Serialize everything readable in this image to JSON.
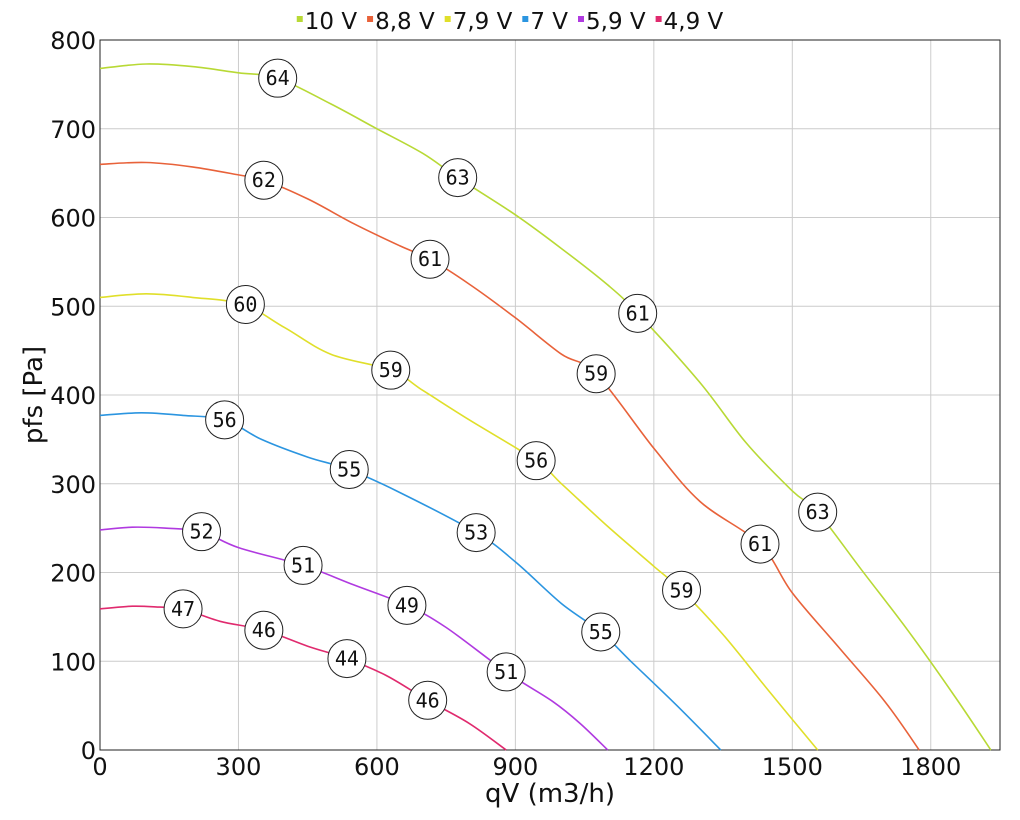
{
  "chart_data": {
    "type": "line",
    "xlabel": "qV (m3/h)",
    "ylabel": "pfs [Pa]",
    "xlim": [
      0,
      1950
    ],
    "ylim": [
      0,
      800
    ],
    "xticks": [
      0,
      300,
      600,
      900,
      1200,
      1500,
      1800
    ],
    "yticks": [
      0,
      100,
      200,
      300,
      400,
      500,
      600,
      700,
      800
    ],
    "grid": true,
    "legend_position": "top",
    "series": [
      {
        "name": "10 V",
        "color": "#b8d935",
        "points": [
          [
            0,
            768
          ],
          [
            100,
            773
          ],
          [
            200,
            770
          ],
          [
            300,
            763
          ],
          [
            385,
            757
          ],
          [
            500,
            728
          ],
          [
            600,
            700
          ],
          [
            700,
            672
          ],
          [
            775,
            645
          ],
          [
            900,
            603
          ],
          [
            1000,
            565
          ],
          [
            1100,
            524
          ],
          [
            1165,
            492
          ],
          [
            1300,
            414
          ],
          [
            1400,
            346
          ],
          [
            1500,
            292
          ],
          [
            1555,
            268
          ],
          [
            1650,
            203
          ],
          [
            1750,
            135
          ],
          [
            1850,
            62
          ],
          [
            1930,
            0
          ]
        ],
        "labels": [
          {
            "x": 385,
            "y": 757,
            "text": "64"
          },
          {
            "x": 775,
            "y": 645,
            "text": "63"
          },
          {
            "x": 1165,
            "y": 492,
            "text": "61"
          },
          {
            "x": 1555,
            "y": 268,
            "text": "63"
          }
        ]
      },
      {
        "name": "8,8 V",
        "color": "#e8623a",
        "points": [
          [
            0,
            660
          ],
          [
            100,
            662
          ],
          [
            200,
            657
          ],
          [
            300,
            648
          ],
          [
            355,
            642
          ],
          [
            450,
            621
          ],
          [
            550,
            593
          ],
          [
            650,
            568
          ],
          [
            715,
            553
          ],
          [
            800,
            525
          ],
          [
            900,
            487
          ],
          [
            1000,
            446
          ],
          [
            1075,
            424
          ],
          [
            1200,
            340
          ],
          [
            1300,
            280
          ],
          [
            1430,
            232
          ],
          [
            1500,
            177
          ],
          [
            1600,
            116
          ],
          [
            1700,
            55
          ],
          [
            1775,
            0
          ]
        ],
        "labels": [
          {
            "x": 355,
            "y": 642,
            "text": "62"
          },
          {
            "x": 715,
            "y": 553,
            "text": "61"
          },
          {
            "x": 1075,
            "y": 424,
            "text": "59"
          },
          {
            "x": 1430,
            "y": 232,
            "text": "61"
          }
        ]
      },
      {
        "name": "7,9 V",
        "color": "#e0df2a",
        "points": [
          [
            0,
            510
          ],
          [
            100,
            514
          ],
          [
            200,
            510
          ],
          [
            310,
            502
          ],
          [
            400,
            476
          ],
          [
            500,
            446
          ],
          [
            630,
            428
          ],
          [
            700,
            405
          ],
          [
            800,
            372
          ],
          [
            945,
            326
          ],
          [
            1000,
            300
          ],
          [
            1100,
            252
          ],
          [
            1200,
            207
          ],
          [
            1260,
            180
          ],
          [
            1350,
            130
          ],
          [
            1450,
            66
          ],
          [
            1555,
            0
          ]
        ],
        "labels": [
          {
            "x": 315,
            "y": 502,
            "text": "60"
          },
          {
            "x": 630,
            "y": 428,
            "text": "59"
          },
          {
            "x": 945,
            "y": 326,
            "text": "56"
          },
          {
            "x": 1260,
            "y": 180,
            "text": "59"
          }
        ]
      },
      {
        "name": "7 V",
        "color": "#2b95e0",
        "points": [
          [
            0,
            377
          ],
          [
            90,
            380
          ],
          [
            180,
            377
          ],
          [
            270,
            372
          ],
          [
            350,
            350
          ],
          [
            450,
            330
          ],
          [
            540,
            316
          ],
          [
            650,
            290
          ],
          [
            815,
            245
          ],
          [
            900,
            212
          ],
          [
            1000,
            165
          ],
          [
            1085,
            133
          ],
          [
            1150,
            100
          ],
          [
            1250,
            50
          ],
          [
            1345,
            0
          ]
        ],
        "labels": [
          {
            "x": 270,
            "y": 372,
            "text": "56"
          },
          {
            "x": 540,
            "y": 316,
            "text": "55"
          },
          {
            "x": 815,
            "y": 245,
            "text": "53"
          },
          {
            "x": 1085,
            "y": 133,
            "text": "55"
          }
        ]
      },
      {
        "name": "5,9 V",
        "color": "#b03ae0",
        "points": [
          [
            0,
            248
          ],
          [
            70,
            251
          ],
          [
            140,
            250
          ],
          [
            220,
            246
          ],
          [
            300,
            228
          ],
          [
            440,
            208
          ],
          [
            550,
            186
          ],
          [
            665,
            163
          ],
          [
            750,
            138
          ],
          [
            880,
            88
          ],
          [
            980,
            55
          ],
          [
            1040,
            30
          ],
          [
            1100,
            0
          ]
        ],
        "labels": [
          {
            "x": 220,
            "y": 246,
            "text": "52"
          },
          {
            "x": 440,
            "y": 208,
            "text": "51"
          },
          {
            "x": 665,
            "y": 163,
            "text": "49"
          },
          {
            "x": 880,
            "y": 88,
            "text": "51"
          }
        ]
      },
      {
        "name": "4,9 V",
        "color": "#e02a6e",
        "points": [
          [
            0,
            159
          ],
          [
            70,
            162
          ],
          [
            130,
            161
          ],
          [
            180,
            159
          ],
          [
            260,
            145
          ],
          [
            355,
            135
          ],
          [
            450,
            117
          ],
          [
            535,
            103
          ],
          [
            620,
            84
          ],
          [
            710,
            56
          ],
          [
            800,
            30
          ],
          [
            880,
            0
          ]
        ],
        "labels": [
          {
            "x": 180,
            "y": 159,
            "text": "47"
          },
          {
            "x": 355,
            "y": 135,
            "text": "46"
          },
          {
            "x": 535,
            "y": 103,
            "text": "44"
          },
          {
            "x": 710,
            "y": 56,
            "text": "46"
          }
        ]
      }
    ]
  }
}
